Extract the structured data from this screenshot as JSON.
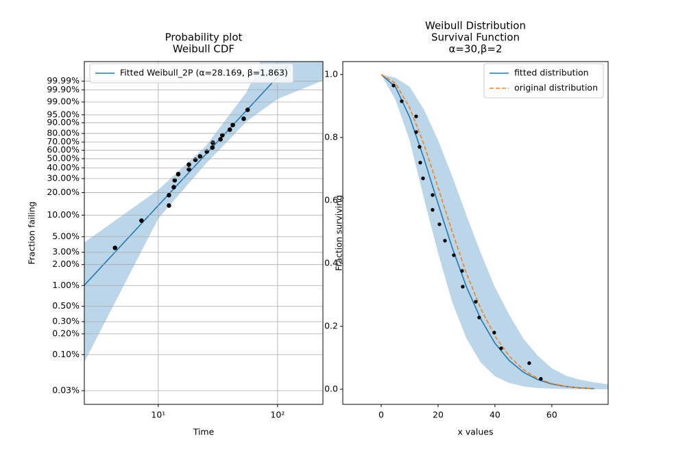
{
  "chart_data": [
    {
      "type": "line",
      "title": [
        "Probability plot",
        "Weibull CDF"
      ],
      "xlabel": "Time",
      "ylabel": "Fraction failing",
      "xscale": "log",
      "yscale": "weibull",
      "xlim": [
        2.4,
        240
      ],
      "ylim": [
        0.019,
        99.999998
      ],
      "xticks": [
        {
          "value": 10,
          "label": "10¹"
        },
        {
          "value": 100,
          "label": "10²"
        }
      ],
      "yticks": [
        {
          "value": 0.03,
          "label": "0.03%"
        },
        {
          "value": 0.1,
          "label": "0.10%"
        },
        {
          "value": 0.2,
          "label": "0.20%"
        },
        {
          "value": 0.3,
          "label": "0.30%"
        },
        {
          "value": 0.5,
          "label": "0.50%"
        },
        {
          "value": 1,
          "label": "1.00%"
        },
        {
          "value": 2,
          "label": "2.00%"
        },
        {
          "value": 3,
          "label": "3.00%"
        },
        {
          "value": 5,
          "label": "5.00%"
        },
        {
          "value": 10,
          "label": "10.00%"
        },
        {
          "value": 20,
          "label": "20.00%"
        },
        {
          "value": 30,
          "label": "30.00%"
        },
        {
          "value": 40,
          "label": "40.00%"
        },
        {
          "value": 50,
          "label": "50.00%"
        },
        {
          "value": 60,
          "label": "60.00%"
        },
        {
          "value": 70,
          "label": "70.00%"
        },
        {
          "value": 80,
          "label": "80.00%"
        },
        {
          "value": 90,
          "label": "90.00%"
        },
        {
          "value": 95,
          "label": "95.00%"
        },
        {
          "value": 99,
          "label": "99.00%"
        },
        {
          "value": 99.9,
          "label": "99.90%"
        },
        {
          "value": 99.99,
          "label": "99.99%"
        }
      ],
      "grid": true,
      "legend": "upper left",
      "series": [
        {
          "name": "Fitted Weibull_2P (α=28.169, β=1.863)",
          "color": "#1f77b4",
          "linestyle": "solid",
          "x": [
            2.4,
            10,
            30,
            100,
            120
          ],
          "values": [
            1.01,
            13.52,
            67.52,
            99.9975,
            99.999965
          ]
        }
      ],
      "band": {
        "color": "#1f77b4",
        "x": [
          2.4,
          10,
          25,
          55,
          72,
          100,
          240
        ],
        "upper": [
          4.14,
          21.7,
          65.2,
          99.83,
          99.999998,
          null,
          null
        ],
        "lower": [
          0.078,
          8.96,
          44.2,
          90.9,
          96.6,
          99.38,
          99.992
        ]
      },
      "scatter": {
        "color": "#000000",
        "x": [
          4.34,
          7.23,
          12.29,
          12.29,
          13.49,
          13.73,
          14.7,
          18.07,
          18.07,
          20.48,
          22.41,
          25.54,
          28.43,
          28.67,
          33.25,
          34.46,
          39.76,
          42.17,
          52.05,
          56.14
        ],
        "values": [
          3.47,
          8.4,
          13.5,
          18.5,
          23.5,
          28.6,
          33.9,
          38.5,
          43.4,
          48.7,
          52.7,
          58.5,
          63.5,
          69.3,
          73.4,
          78.1,
          83.9,
          88.2,
          92.8,
          97.1
        ]
      }
    },
    {
      "type": "line",
      "title": [
        "Weibull Distribution",
        "Survival Function",
        "α=30,β=2"
      ],
      "xlabel": "x values",
      "ylabel": "Fraction surviving",
      "xscale": "linear",
      "yscale": "linear",
      "xlim": [
        -13.5,
        79.8
      ],
      "ylim": [
        -0.048,
        1.041
      ],
      "xticks": [
        0,
        20,
        40,
        60
      ],
      "yticks": [
        {
          "value": 0,
          "label": "0.0"
        },
        0.2,
        0.4,
        0.6,
        0.8,
        {
          "value": 1,
          "label": "1.0"
        }
      ],
      "grid": false,
      "legend": "upper right",
      "series": [
        {
          "name": "fitted distribution",
          "color": "#1f77b4",
          "linestyle": "solid",
          "x": [
            0,
            5,
            10,
            15,
            20,
            25,
            30,
            35,
            40,
            45,
            50,
            55,
            60,
            65,
            70,
            75
          ],
          "values": [
            1,
            0.9609,
            0.8649,
            0.7341,
            0.5896,
            0.449,
            0.3248,
            0.2235,
            0.1463,
            0.0913,
            0.0543,
            0.0309,
            0.0167,
            0.0087,
            0.0043,
            0.002
          ]
        },
        {
          "name": "original distribution",
          "color": "#ff7f0e",
          "linestyle": "dashed",
          "x": [
            0,
            5,
            10,
            15,
            20,
            25,
            30,
            35,
            40,
            45,
            50,
            55,
            60,
            65,
            70,
            75
          ],
          "values": [
            1,
            0.9726,
            0.8948,
            0.7788,
            0.6412,
            0.4994,
            0.3679,
            0.2564,
            0.169,
            0.1054,
            0.0622,
            0.0347,
            0.0183,
            0.0091,
            0.0043,
            0.0019
          ]
        }
      ],
      "band": {
        "color": "#1f77b4",
        "x": [
          0,
          5,
          10,
          15,
          20,
          25,
          30,
          35,
          40,
          45,
          50,
          55,
          60,
          65,
          70,
          75,
          80
        ],
        "upper": [
          1,
          0.99,
          0.961,
          0.889,
          0.791,
          0.676,
          0.552,
          0.433,
          0.324,
          0.237,
          0.161,
          0.107,
          0.067,
          0.043,
          0.03,
          0.022,
          0.015
        ],
        "lower": [
          1,
          0.92,
          0.791,
          0.607,
          0.433,
          0.276,
          0.161,
          0.085,
          0.041,
          0.02,
          0.009,
          0.004,
          0.002,
          0.001,
          0,
          0,
          0
        ]
      },
      "scatter": {
        "color": "#000000",
        "x": [
          4.34,
          7.23,
          12.29,
          12.29,
          13.49,
          13.73,
          14.7,
          18.07,
          18.07,
          20.48,
          22.41,
          25.54,
          28.43,
          28.67,
          33.25,
          34.46,
          39.76,
          42.17,
          52.05,
          56.14
        ],
        "values": [
          0.965,
          0.915,
          0.867,
          0.817,
          0.77,
          0.72,
          0.67,
          0.617,
          0.57,
          0.524,
          0.472,
          0.426,
          0.376,
          0.326,
          0.278,
          0.228,
          0.18,
          0.13,
          0.083,
          0.033
        ]
      }
    }
  ]
}
